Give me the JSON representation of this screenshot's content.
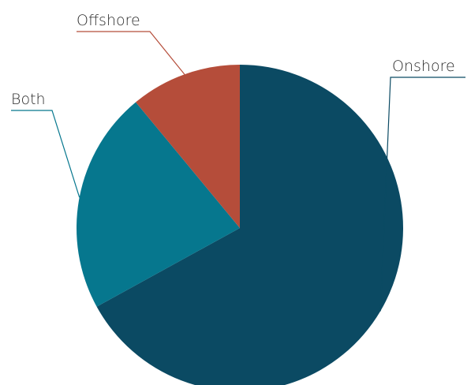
{
  "chart_data": {
    "type": "pie",
    "categories": [
      "Onshore",
      "Both",
      "Offshore"
    ],
    "values": [
      67,
      22,
      11
    ],
    "colors": [
      "#0b4a63",
      "#06778e",
      "#b54d3a"
    ],
    "title": "",
    "legend": "none",
    "start_angle": "12 o'clock",
    "direction": "clockwise"
  }
}
